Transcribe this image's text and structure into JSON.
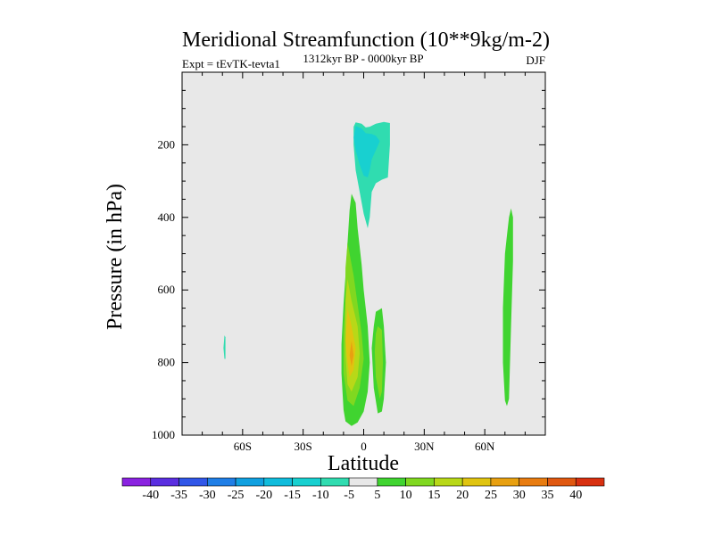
{
  "chart_data": {
    "type": "contour",
    "title": "Meridional Streamfunction (10**9kg/m-2)",
    "left_string": "Expt = tEvTK-tevta1",
    "center_string": "1312kyr BP - 0000kyr BP",
    "right_string": "DJF",
    "xlabel": "Latitude",
    "ylabel": "Pressure (in hPa)",
    "xlim": [
      -90,
      90
    ],
    "ylim": [
      1000,
      0
    ],
    "x_ticks": [
      {
        "value": -60,
        "label": "60S"
      },
      {
        "value": -30,
        "label": "30S"
      },
      {
        "value": 0,
        "label": "0"
      },
      {
        "value": 30,
        "label": "30N"
      },
      {
        "value": 60,
        "label": "60N"
      }
    ],
    "y_ticks": [
      {
        "value": 200,
        "label": "200"
      },
      {
        "value": 400,
        "label": "400"
      },
      {
        "value": 600,
        "label": "600"
      },
      {
        "value": 800,
        "label": "800"
      },
      {
        "value": 1000,
        "label": "1000"
      }
    ],
    "background_color": "#e8e8e8",
    "colorbar": {
      "labels": [
        "-40",
        "-35",
        "-30",
        "-25",
        "-20",
        "-15",
        "-10",
        "-5",
        "5",
        "10",
        "15",
        "20",
        "25",
        "30",
        "35",
        "40"
      ],
      "colors": [
        "#8a22e0",
        "#5a2ee0",
        "#3056e8",
        "#1f7ee6",
        "#10a0e0",
        "#10bcdc",
        "#18d0d0",
        "#30dcb0",
        "#e8e8e8",
        "#40d430",
        "#80d820",
        "#b8d818",
        "#e0c410",
        "#e8a010",
        "#e87c10",
        "#e05810",
        "#d83010"
      ]
    },
    "regions": [
      {
        "name": "upper-tropical-negative-cell",
        "value_range": [
          -10,
          -5
        ],
        "color": "#30dcb0",
        "polygon": [
          [
            -4,
            138
          ],
          [
            -1,
            142
          ],
          [
            1,
            152
          ],
          [
            3,
            150
          ],
          [
            6,
            142
          ],
          [
            10,
            137
          ],
          [
            13,
            140
          ],
          [
            13,
            200
          ],
          [
            12,
            290
          ],
          [
            9,
            296
          ],
          [
            6,
            306
          ],
          [
            4,
            330
          ],
          [
            3,
            400
          ],
          [
            2,
            430
          ],
          [
            0,
            390
          ],
          [
            -2,
            330
          ],
          [
            -4,
            270
          ],
          [
            -5,
            200
          ],
          [
            -5,
            150
          ]
        ]
      },
      {
        "name": "upper-tropical-negative-core",
        "value_range": [
          -15,
          -10
        ],
        "color": "#18d0d0",
        "polygon": [
          [
            -4,
            148
          ],
          [
            -1,
            155
          ],
          [
            1,
            168
          ],
          [
            4,
            170
          ],
          [
            6,
            175
          ],
          [
            8,
            190
          ],
          [
            6,
            215
          ],
          [
            4,
            240
          ],
          [
            3,
            270
          ],
          [
            2,
            290
          ],
          [
            0,
            285
          ],
          [
            -2,
            255
          ],
          [
            -4,
            215
          ],
          [
            -5,
            180
          ]
        ]
      },
      {
        "name": "lower-tropical-positive-cell",
        "value_range": [
          5,
          10
        ],
        "color": "#40d430",
        "polygon": [
          [
            -6,
            335
          ],
          [
            -4,
            360
          ],
          [
            -3,
            430
          ],
          [
            -1,
            530
          ],
          [
            0,
            600
          ],
          [
            2,
            700
          ],
          [
            3,
            800
          ],
          [
            2,
            880
          ],
          [
            0,
            935
          ],
          [
            -3,
            965
          ],
          [
            -6,
            975
          ],
          [
            -9,
            962
          ],
          [
            -10,
            930
          ],
          [
            -11,
            830
          ],
          [
            -11,
            750
          ],
          [
            -10,
            640
          ],
          [
            -9,
            560
          ],
          [
            -8,
            470
          ],
          [
            -7,
            380
          ]
        ]
      },
      {
        "name": "lower-tropical-positive-15",
        "value_range": [
          10,
          15
        ],
        "color": "#80d820",
        "polygon": [
          [
            -8,
            470
          ],
          [
            -5,
            560
          ],
          [
            -3,
            640
          ],
          [
            -1,
            720
          ],
          [
            0,
            790
          ],
          [
            -2,
            870
          ],
          [
            -5,
            920
          ],
          [
            -8,
            905
          ],
          [
            -10,
            830
          ],
          [
            -10,
            720
          ],
          [
            -9,
            620
          ],
          [
            -9,
            540
          ]
        ]
      },
      {
        "name": "lower-tropical-positive-20",
        "value_range": [
          15,
          20
        ],
        "color": "#b8d818",
        "polygon": [
          [
            -8,
            570
          ],
          [
            -6,
            630
          ],
          [
            -3,
            700
          ],
          [
            -2,
            775
          ],
          [
            -3,
            840
          ],
          [
            -6,
            880
          ],
          [
            -8,
            860
          ],
          [
            -9,
            780
          ],
          [
            -9,
            700
          ],
          [
            -9,
            630
          ]
        ]
      },
      {
        "name": "lower-tropical-positive-25",
        "value_range": [
          20,
          25
        ],
        "color": "#e0c410",
        "polygon": [
          [
            -8,
            650
          ],
          [
            -6,
            700
          ],
          [
            -4,
            760
          ],
          [
            -5,
            820
          ],
          [
            -7,
            840
          ],
          [
            -8,
            800
          ],
          [
            -9,
            740
          ]
        ]
      },
      {
        "name": "lower-tropical-positive-core",
        "value_range": [
          25,
          30
        ],
        "color": "#e8a010",
        "polygon": [
          [
            -6,
            740
          ],
          [
            -5,
            780
          ],
          [
            -6,
            810
          ],
          [
            -7,
            780
          ]
        ]
      },
      {
        "name": "secondary-tropical-positive-cell",
        "value_range": [
          5,
          10
        ],
        "color": "#40d430",
        "polygon": [
          [
            6,
            660
          ],
          [
            9,
            650
          ],
          [
            10,
            700
          ],
          [
            11,
            800
          ],
          [
            10,
            900
          ],
          [
            9,
            935
          ],
          [
            7,
            940
          ],
          [
            5,
            870
          ],
          [
            4,
            760
          ],
          [
            5,
            700
          ]
        ]
      },
      {
        "name": "secondary-tropical-positive-core",
        "value_range": [
          10,
          15
        ],
        "color": "#80d820",
        "polygon": [
          [
            7,
            700
          ],
          [
            9,
            710
          ],
          [
            9.5,
            800
          ],
          [
            9,
            880
          ],
          [
            8,
            900
          ],
          [
            6,
            840
          ],
          [
            5.5,
            770
          ],
          [
            6,
            720
          ]
        ]
      },
      {
        "name": "northern-high-latitude-positive-cell",
        "value_range": [
          5,
          10
        ],
        "color": "#40d430",
        "polygon": [
          [
            73,
            375
          ],
          [
            74,
            400
          ],
          [
            74,
            520
          ],
          [
            73,
            700
          ],
          [
            72,
            900
          ],
          [
            71,
            920
          ],
          [
            70,
            905
          ],
          [
            69,
            800
          ],
          [
            69,
            650
          ],
          [
            70,
            500
          ],
          [
            71,
            450
          ],
          [
            72,
            400
          ]
        ]
      },
      {
        "name": "southern-high-latitude-negative-cell",
        "value_range": [
          -10,
          -5
        ],
        "color": "#30dcb0",
        "polygon": [
          [
            -69,
            725
          ],
          [
            -68.5,
            730
          ],
          [
            -68.5,
            790
          ],
          [
            -69,
            790
          ],
          [
            -69.5,
            760
          ]
        ]
      }
    ]
  }
}
